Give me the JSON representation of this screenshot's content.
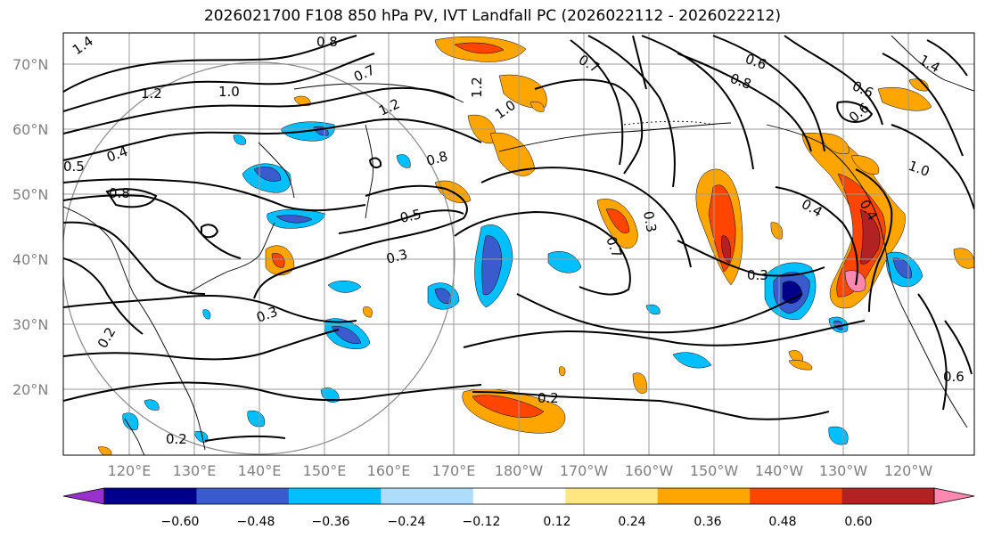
{
  "title": "2026021700 F108 850 hPa PV, IVT Landfall PC (2026022112 - 2026022212)",
  "lat_labels": [
    "70°N",
    "60°N",
    "50°N",
    "40°N",
    "30°N",
    "20°N"
  ],
  "lon_labels": [
    "120°E",
    "130°E",
    "140°E",
    "150°E",
    "160°E",
    "170°E",
    "180°W",
    "170°W",
    "160°W",
    "150°W",
    "140°W",
    "130°W",
    "120°W"
  ],
  "contour_labels": [
    "0.8",
    "1.4",
    "1.2",
    "1.0",
    "0.7",
    "1.2",
    "0.5",
    "0.4",
    "0.8",
    "0.5",
    "0.3",
    "0.3",
    "0.2",
    "0.8",
    "1.0",
    "1.2",
    "0.7",
    "0.6",
    "0.8",
    "0.3",
    "0.4",
    "0.3",
    "0.2",
    "0.2",
    "0.6",
    "1.0",
    "1.4",
    "0.6",
    "0.4",
    "0.7",
    "0.6"
  ],
  "colorbar": {
    "ticks": [
      "−0.60",
      "−0.48",
      "−0.36",
      "−0.24",
      "−0.12",
      "0.12",
      "0.24",
      "0.36",
      "0.48",
      "0.60"
    ],
    "colors": [
      "#9932cc",
      "#00008b",
      "#3a5bcd",
      "#00bfff",
      "#aeddfb",
      "#ffffff",
      "#ffe680",
      "#ffa500",
      "#ff4500",
      "#b22222",
      "#ff88b0"
    ]
  }
}
